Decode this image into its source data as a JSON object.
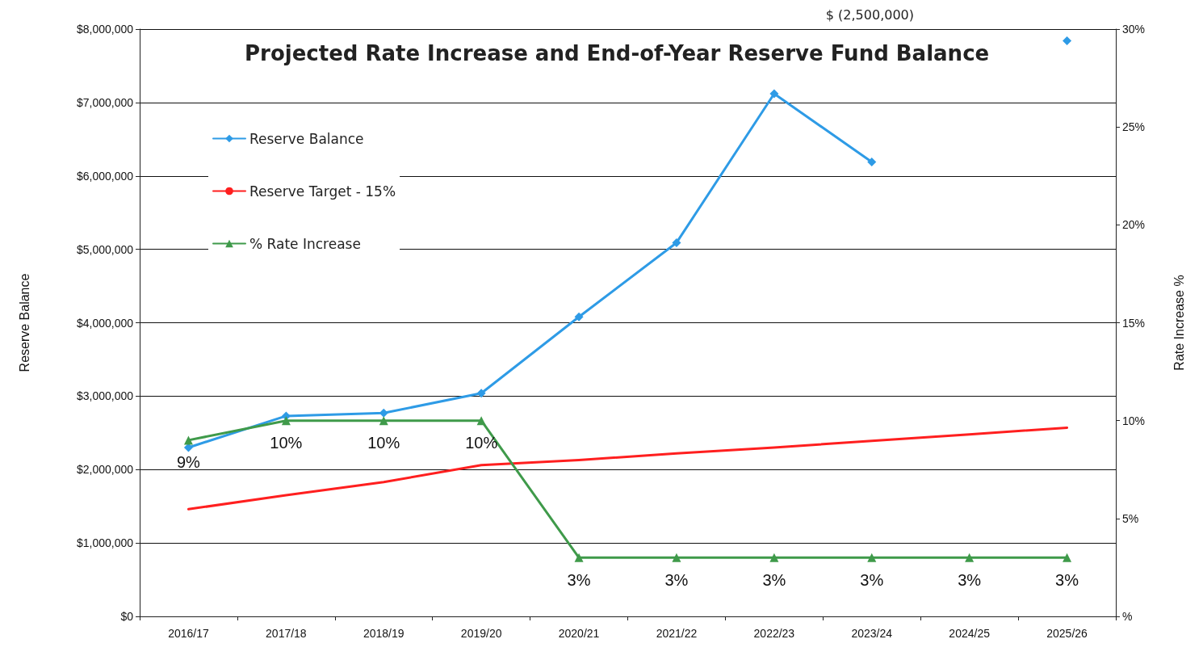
{
  "chart_data": {
    "type": "line",
    "title": "Projected Rate Increase and End-of-Year Reserve Fund Balance",
    "xlabel": null,
    "ylabel": "Reserve Balance",
    "y2label": "Rate Increase %",
    "categories": [
      "2016/17",
      "2017/18",
      "2018/19",
      "2019/20",
      "2020/21",
      "2021/22",
      "2022/23",
      "2023/24",
      "2024/25",
      "2025/26"
    ],
    "series": [
      {
        "name": "Reserve Balance",
        "color": "#2e9be6",
        "marker": "diamond",
        "values": [
          2300000,
          2730000,
          2770000,
          3040000,
          4080000,
          5090000,
          7120000,
          6190000,
          null,
          7840000
        ]
      },
      {
        "name": "Reserve Target - 15%",
        "color": "#ff1f1f",
        "marker": "none",
        "values": [
          1460000,
          1650000,
          1830000,
          2060000,
          2130000,
          2220000,
          2300000,
          2390000,
          2480000,
          2570000
        ]
      },
      {
        "name": "% Rate Increase",
        "color": "#3f9a4a",
        "marker": "triangle",
        "axis": "y2",
        "values": [
          9,
          10,
          10,
          10,
          3,
          3,
          3,
          3,
          3,
          3
        ],
        "value_labels": [
          "9%",
          "10%",
          "10%",
          "10%",
          "3%",
          "3%",
          "3%",
          "3%",
          "3%",
          "3%"
        ]
      }
    ],
    "ylim": [
      0,
      8000000
    ],
    "yticks": [
      {
        "value": 0,
        "label": "$0"
      },
      {
        "value": 1000000,
        "label": "$1,000,000"
      },
      {
        "value": 2000000,
        "label": "$2,000,000"
      },
      {
        "value": 3000000,
        "label": "$3,000,000"
      },
      {
        "value": 4000000,
        "label": "$4,000,000"
      },
      {
        "value": 5000000,
        "label": "$5,000,000"
      },
      {
        "value": 6000000,
        "label": "$6,000,000"
      },
      {
        "value": 7000000,
        "label": "$7,000,000"
      },
      {
        "value": 8000000,
        "label": "$8,000,000"
      }
    ],
    "y2lim": [
      0,
      30
    ],
    "y2ticks": [
      {
        "value": 0,
        "label": "%"
      },
      {
        "value": 5,
        "label": "5%"
      },
      {
        "value": 10,
        "label": "10%"
      },
      {
        "value": 15,
        "label": "15%"
      },
      {
        "value": 20,
        "label": "20%"
      },
      {
        "value": 25,
        "label": "25%"
      },
      {
        "value": 30,
        "label": "30%"
      }
    ],
    "grid": "y",
    "legend": "top left",
    "annotations": [
      "$ (2,500,000)"
    ]
  }
}
